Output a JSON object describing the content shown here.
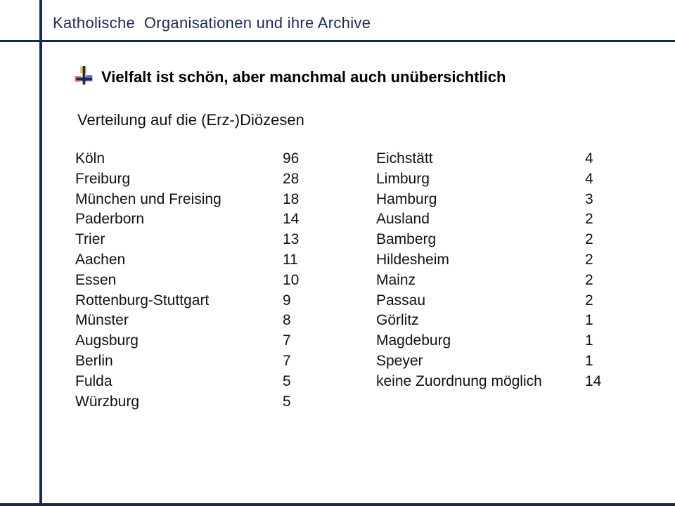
{
  "slide": {
    "header": {
      "title": "Katholische  Organisationen und ihre Archive"
    },
    "bullet_heading": {
      "icon": "cross-logo-icon",
      "text": "Vielfalt ist schön, aber manchmal auch unübersichtlich"
    },
    "section_title": "Verteilung auf die (Erz-)Diözesen"
  },
  "diocese_table": {
    "left": [
      {
        "name": "Köln",
        "count": "96"
      },
      {
        "name": "Freiburg",
        "count": "28"
      },
      {
        "name": "München und Freising",
        "count": "18"
      },
      {
        "name": "Paderborn",
        "count": "14"
      },
      {
        "name": "Trier",
        "count": "13"
      },
      {
        "name": "Aachen",
        "count": "11"
      },
      {
        "name": "Essen",
        "count": "10"
      },
      {
        "name": "Rottenburg-Stuttgart",
        "count": "9"
      },
      {
        "name": "Münster",
        "count": "8"
      },
      {
        "name": "Augsburg",
        "count": "7"
      },
      {
        "name": "Berlin",
        "count": "7"
      },
      {
        "name": "Fulda",
        "count": "5"
      },
      {
        "name": "Würzburg",
        "count": "5"
      }
    ],
    "right": [
      {
        "name": "Eichstätt",
        "count": "4"
      },
      {
        "name": "Limburg",
        "count": "4"
      },
      {
        "name": "Hamburg",
        "count": "3"
      },
      {
        "name": "Ausland",
        "count": "2"
      },
      {
        "name": "Bamberg",
        "count": "2"
      },
      {
        "name": "Hildesheim",
        "count": "2"
      },
      {
        "name": "Mainz",
        "count": "2"
      },
      {
        "name": "Passau",
        "count": "2"
      },
      {
        "name": "Görlitz",
        "count": "1"
      },
      {
        "name": "Magdeburg",
        "count": "1"
      },
      {
        "name": "Speyer",
        "count": "1"
      },
      {
        "name": "keine Zuordnung möglich",
        "count": "14"
      }
    ]
  },
  "colors": {
    "accent_navy": "#17294f",
    "title_navy": "#1b2a55",
    "body_text": "#111111",
    "icon_yellow": "#edba4e",
    "icon_red": "#d96a66",
    "icon_blue": "#6f6fc9"
  }
}
